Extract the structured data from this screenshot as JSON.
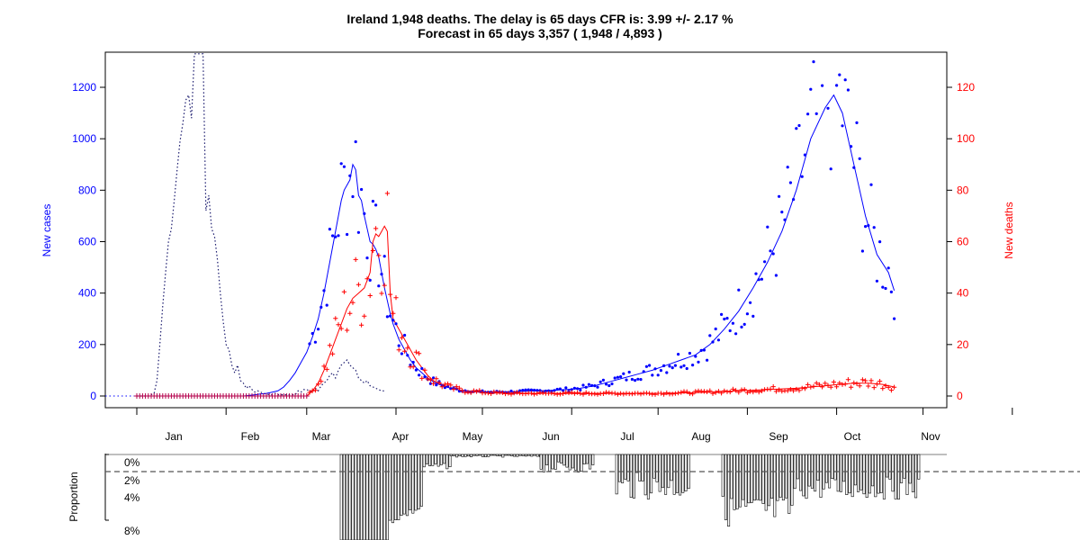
{
  "chart_data": [
    {
      "type": "line",
      "title": "Ireland 1,948 deaths. The delay is 65 days CFR is: 3.99 +/- 2.17 %",
      "subtitle": "Forecast in 65 days 3,357 ( 1,948 / 4,893 )",
      "xlabel": "",
      "ylabel": "New cases",
      "ylabel_right": "New deaths",
      "x_tick_labels": [
        "Jan",
        "Feb",
        "Mar",
        "Apr",
        "May",
        "Jun",
        "Jul",
        "Aug",
        "Sep",
        "Oct",
        "Nov"
      ],
      "y_ticks_left": [
        "0",
        "200",
        "400",
        "600",
        "800",
        "1000",
        "1200"
      ],
      "y_ticks_right": [
        "0",
        "20",
        "40",
        "60",
        "80",
        "100",
        "120"
      ],
      "ylim_left": [
        -45,
        1330
      ],
      "ylim_right": [
        -4.5,
        133
      ],
      "grid": false,
      "colors": {
        "cases": "#0000ff",
        "deaths": "#ff0000",
        "forecast": "#1a1a6e",
        "overlap": "#b4004b"
      },
      "series": [
        {
          "kind": "forecast-dotted",
          "points": [
            [
              1,
              0
            ],
            [
              5,
              0
            ],
            [
              7,
              10
            ],
            [
              8,
              60
            ],
            [
              9,
              200
            ],
            [
              10,
              350
            ],
            [
              11,
              480
            ],
            [
              12,
              600
            ],
            [
              13,
              650
            ],
            [
              14,
              760
            ],
            [
              15,
              880
            ],
            [
              16,
              990
            ],
            [
              17,
              1060
            ],
            [
              18,
              1150
            ],
            [
              19,
              1170
            ],
            [
              20,
              1080
            ],
            [
              21,
              1330
            ],
            [
              22,
              1330
            ],
            [
              23,
              1330
            ],
            [
              24,
              1330
            ],
            [
              25,
              720
            ],
            [
              26,
              780
            ],
            [
              27,
              650
            ],
            [
              28,
              620
            ],
            [
              29,
              530
            ],
            [
              30,
              400
            ],
            [
              31,
              290
            ],
            [
              32,
              200
            ],
            [
              33,
              180
            ],
            [
              34,
              120
            ],
            [
              35,
              90
            ],
            [
              36,
              120
            ],
            [
              37,
              60
            ],
            [
              38,
              50
            ],
            [
              39,
              30
            ],
            [
              40,
              40
            ],
            [
              41,
              25
            ],
            [
              42,
              15
            ],
            [
              43,
              20
            ],
            [
              44,
              15
            ],
            [
              45,
              10
            ],
            [
              46,
              8
            ],
            [
              47,
              5
            ],
            [
              48,
              5
            ],
            [
              49,
              10
            ],
            [
              50,
              5
            ],
            [
              51,
              5
            ],
            [
              52,
              5
            ],
            [
              53,
              5
            ],
            [
              54,
              5
            ],
            [
              55,
              5
            ],
            [
              56,
              5
            ],
            [
              57,
              20
            ],
            [
              58,
              15
            ],
            [
              59,
              25
            ],
            [
              60,
              25
            ],
            [
              61,
              20
            ],
            [
              62,
              15
            ],
            [
              63,
              30
            ],
            [
              64,
              20
            ],
            [
              65,
              40
            ],
            [
              66,
              50
            ],
            [
              67,
              60
            ],
            [
              68,
              80
            ],
            [
              69,
              90
            ],
            [
              70,
              70
            ],
            [
              71,
              100
            ],
            [
              72,
              120
            ],
            [
              73,
              130
            ],
            [
              74,
              140
            ],
            [
              75,
              120
            ],
            [
              76,
              110
            ],
            [
              77,
              100
            ],
            [
              78,
              70
            ],
            [
              79,
              60
            ],
            [
              80,
              50
            ],
            [
              81,
              60
            ],
            [
              82,
              40
            ],
            [
              83,
              35
            ],
            [
              84,
              30
            ],
            [
              85,
              25
            ],
            [
              86,
              20
            ],
            [
              87,
              20
            ]
          ]
        },
        {
          "kind": "cases-smoothed",
          "points": [
            [
              1,
              0
            ],
            [
              38,
              0
            ],
            [
              40,
              2
            ],
            [
              42,
              5
            ],
            [
              44,
              8
            ],
            [
              46,
              10
            ],
            [
              48,
              15
            ],
            [
              50,
              20
            ],
            [
              52,
              35
            ],
            [
              54,
              60
            ],
            [
              56,
              90
            ],
            [
              58,
              130
            ],
            [
              60,
              170
            ],
            [
              62,
              230
            ],
            [
              64,
              300
            ],
            [
              66,
              400
            ],
            [
              68,
              520
            ],
            [
              70,
              640
            ],
            [
              72,
              760
            ],
            [
              73,
              800
            ],
            [
              74,
              820
            ],
            [
              75,
              840
            ],
            [
              76,
              900
            ],
            [
              77,
              880
            ],
            [
              78,
              780
            ],
            [
              79,
              760
            ],
            [
              80,
              700
            ],
            [
              81,
              650
            ],
            [
              82,
              600
            ],
            [
              83,
              590
            ],
            [
              84,
              570
            ],
            [
              85,
              540
            ],
            [
              86,
              480
            ],
            [
              87,
              420
            ],
            [
              88,
              370
            ],
            [
              89,
              320
            ],
            [
              90,
              280
            ],
            [
              92,
              220
            ],
            [
              94,
              180
            ],
            [
              96,
              140
            ],
            [
              98,
              110
            ],
            [
              100,
              90
            ],
            [
              102,
              70
            ],
            [
              104,
              55
            ],
            [
              106,
              45
            ],
            [
              108,
              38
            ],
            [
              110,
              30
            ],
            [
              112,
              25
            ],
            [
              114,
              22
            ],
            [
              116,
              20
            ],
            [
              118,
              18
            ],
            [
              120,
              16
            ],
            [
              125,
              15
            ],
            [
              130,
              16
            ],
            [
              135,
              18
            ],
            [
              140,
              20
            ],
            [
              145,
              22
            ],
            [
              150,
              25
            ],
            [
              155,
              30
            ],
            [
              160,
              40
            ],
            [
              165,
              55
            ],
            [
              170,
              70
            ],
            [
              175,
              85
            ],
            [
              180,
              100
            ],
            [
              185,
              120
            ],
            [
              190,
              140
            ],
            [
              195,
              160
            ],
            [
              200,
              200
            ],
            [
              205,
              260
            ],
            [
              210,
              330
            ],
            [
              215,
              420
            ],
            [
              220,
              520
            ],
            [
              225,
              640
            ],
            [
              230,
              800
            ],
            [
              235,
              1000
            ],
            [
              240,
              1120
            ],
            [
              243,
              1170
            ],
            [
              246,
              1100
            ],
            [
              250,
              900
            ],
            [
              254,
              700
            ],
            [
              258,
              550
            ],
            [
              262,
              480
            ],
            [
              264,
              410
            ]
          ]
        },
        {
          "kind": "deaths-smoothed",
          "points": [
            [
              1,
              0
            ],
            [
              60,
              0
            ],
            [
              62,
              2
            ],
            [
              64,
              5
            ],
            [
              66,
              10
            ],
            [
              68,
              16
            ],
            [
              70,
              22
            ],
            [
              72,
              28
            ],
            [
              74,
              34
            ],
            [
              76,
              38
            ],
            [
              78,
              40
            ],
            [
              80,
              42
            ],
            [
              82,
              48
            ],
            [
              83,
              60
            ],
            [
              84,
              63
            ],
            [
              85,
              62
            ],
            [
              86,
              64
            ],
            [
              87,
              66
            ],
            [
              88,
              64
            ],
            [
              89,
              40
            ],
            [
              90,
              30
            ],
            [
              92,
              26
            ],
            [
              94,
              22
            ],
            [
              96,
              18
            ],
            [
              98,
              14
            ],
            [
              100,
              11
            ],
            [
              102,
              8
            ],
            [
              104,
              6
            ],
            [
              106,
              5
            ],
            [
              108,
              4
            ],
            [
              110,
              3
            ],
            [
              115,
              2
            ],
            [
              120,
              1.5
            ],
            [
              125,
              1.2
            ],
            [
              130,
              1
            ],
            [
              140,
              1
            ],
            [
              150,
              1
            ],
            [
              160,
              1
            ],
            [
              170,
              1
            ],
            [
              180,
              1
            ],
            [
              190,
              1.2
            ],
            [
              200,
              1.5
            ],
            [
              210,
              2
            ],
            [
              220,
              2.5
            ],
            [
              230,
              3
            ],
            [
              240,
              4
            ],
            [
              245,
              4.5
            ],
            [
              250,
              5
            ],
            [
              255,
              5
            ],
            [
              260,
              4.5
            ],
            [
              264,
              3.5
            ]
          ]
        }
      ]
    },
    {
      "type": "bar",
      "ylabel": "Proportion",
      "y_tick_labels": [
        "0%",
        "2%",
        "4%",
        "8%"
      ],
      "reference_line": "2%",
      "note": "daily proportion bars below the main panel"
    }
  ]
}
